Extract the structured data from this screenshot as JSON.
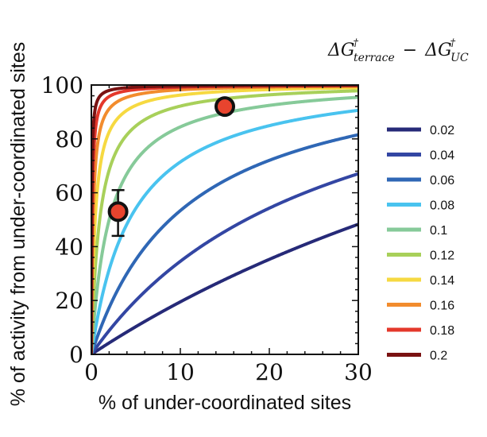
{
  "chart_data": {
    "type": "line",
    "title": "",
    "xlabel": "% of under-coordinated sites",
    "ylabel": "% of activity from under-coordinated sites",
    "xlim": [
      0,
      30
    ],
    "ylim": [
      0,
      100
    ],
    "x_ticks": [
      "0",
      "10",
      "20",
      "30"
    ],
    "y_ticks": [
      "0",
      "20",
      "40",
      "60",
      "80",
      "100"
    ],
    "legend": {
      "title_main": "ΔG",
      "title_sup": "†",
      "title_sub1": "terrace",
      "title_sub2": "UC",
      "title_minus": "−",
      "placement": "right"
    },
    "series": [
      {
        "name": "0.02",
        "color": "#262a78",
        "ratio": 2.18
      },
      {
        "name": "0.04",
        "color": "#3346a3",
        "ratio": 4.75
      },
      {
        "name": "0.06",
        "color": "#2f67b5",
        "ratio": 10.3
      },
      {
        "name": "0.08",
        "color": "#49c3ef",
        "ratio": 22.5
      },
      {
        "name": "0.1",
        "color": "#86ca99",
        "ratio": 48.9
      },
      {
        "name": "0.12",
        "color": "#a8d05a",
        "ratio": 106
      },
      {
        "name": "0.14",
        "color": "#f6d941",
        "ratio": 232
      },
      {
        "name": "0.16",
        "color": "#f28c2d",
        "ratio": 504
      },
      {
        "name": "0.18",
        "color": "#e4382b",
        "ratio": 1097
      },
      {
        "name": "0.2",
        "color": "#7a1212",
        "ratio": 2387
      }
    ],
    "points": [
      {
        "x": 3,
        "y": 53,
        "yerr_low": 44,
        "yerr_high": 61,
        "color": "#e8442e"
      },
      {
        "x": 15,
        "y": 92,
        "color": "#e8442e"
      }
    ]
  }
}
